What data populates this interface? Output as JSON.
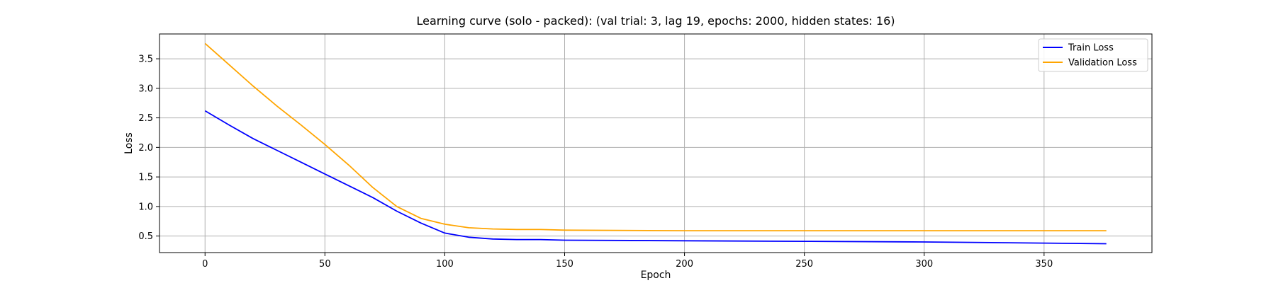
{
  "chart_data": {
    "type": "line",
    "title": "Learning curve (solo - packed): (val trial: 3, lag 19, epochs: 2000, hidden states: 16)",
    "xlabel": "Epoch",
    "ylabel": "Loss",
    "xlim": [
      -19,
      395
    ],
    "ylim": [
      0.22,
      3.92
    ],
    "xticks": [
      0,
      50,
      100,
      150,
      200,
      250,
      300,
      350
    ],
    "yticks": [
      0.5,
      1.0,
      1.5,
      2.0,
      2.5,
      3.0,
      3.5
    ],
    "xtick_labels": [
      "0",
      "50",
      "100",
      "150",
      "200",
      "250",
      "300",
      "350"
    ],
    "ytick_labels": [
      "0.5",
      "1.0",
      "1.5",
      "2.0",
      "2.5",
      "3.0",
      "3.5"
    ],
    "grid": true,
    "legend_position": "top-right",
    "series": [
      {
        "name": "Train Loss",
        "color": "#0000ff",
        "x": [
          0,
          10,
          20,
          30,
          40,
          50,
          60,
          70,
          80,
          90,
          100,
          110,
          120,
          130,
          140,
          150,
          200,
          250,
          300,
          350,
          376
        ],
        "y": [
          2.62,
          2.38,
          2.15,
          1.95,
          1.75,
          1.55,
          1.35,
          1.15,
          0.92,
          0.72,
          0.55,
          0.48,
          0.45,
          0.44,
          0.44,
          0.43,
          0.42,
          0.41,
          0.4,
          0.38,
          0.37
        ]
      },
      {
        "name": "Validation Loss",
        "color": "#ffa500",
        "x": [
          0,
          10,
          20,
          30,
          40,
          50,
          60,
          70,
          80,
          90,
          100,
          110,
          120,
          130,
          140,
          150,
          200,
          250,
          300,
          350,
          376
        ],
        "y": [
          3.76,
          3.4,
          3.04,
          2.7,
          2.38,
          2.05,
          1.7,
          1.32,
          1.0,
          0.8,
          0.7,
          0.64,
          0.62,
          0.61,
          0.61,
          0.6,
          0.59,
          0.59,
          0.59,
          0.59,
          0.59
        ]
      }
    ]
  }
}
